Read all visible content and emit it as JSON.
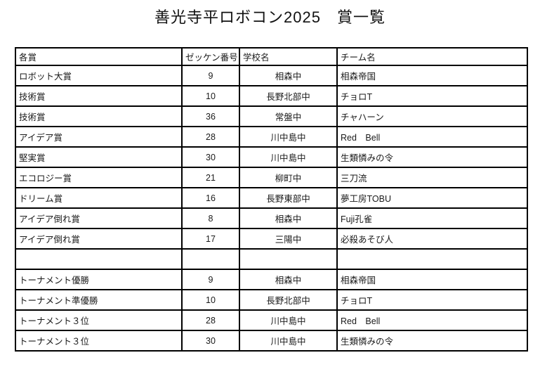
{
  "title": "善光寺平ロボコン2025　賞一覧",
  "table": {
    "columns": [
      {
        "label": "各賞"
      },
      {
        "label": "ゼッケン番号"
      },
      {
        "label": "学校名"
      },
      {
        "label": "チーム名"
      }
    ],
    "rows": [
      {
        "award": "ロボット大賞",
        "bib": "9",
        "school": "相森中",
        "team": "相森帝国"
      },
      {
        "award": "技術賞",
        "bib": "10",
        "school": "長野北部中",
        "team": "チョロT"
      },
      {
        "award": "技術賞",
        "bib": "36",
        "school": "常盤中",
        "team": "チャハーン"
      },
      {
        "award": "アイデア賞",
        "bib": "28",
        "school": "川中島中",
        "team": "Red　Bell"
      },
      {
        "award": "堅実賞",
        "bib": "30",
        "school": "川中島中",
        "team": "生類憐みの令"
      },
      {
        "award": "エコロジー賞",
        "bib": "21",
        "school": "柳町中",
        "team": "三刀流"
      },
      {
        "award": "ドリーム賞",
        "bib": "16",
        "school": "長野東部中",
        "team": "夢工房TOBU"
      },
      {
        "award": "アイデア倒れ賞",
        "bib": "8",
        "school": "相森中",
        "team": "Fuji孔雀"
      },
      {
        "award": "アイデア倒れ賞",
        "bib": "17",
        "school": "三陽中",
        "team": "必殺あそび人"
      },
      {
        "award": "",
        "bib": "",
        "school": "",
        "team": ""
      },
      {
        "award": "トーナメント優勝",
        "bib": "9",
        "school": "相森中",
        "team": "相森帝国"
      },
      {
        "award": "トーナメント準優勝",
        "bib": "10",
        "school": "長野北部中",
        "team": "チョロT"
      },
      {
        "award": "トーナメント３位",
        "bib": "28",
        "school": "川中島中",
        "team": "Red　Bell"
      },
      {
        "award": "トーナメント３位",
        "bib": "30",
        "school": "川中島中",
        "team": "生類憐みの令"
      }
    ]
  }
}
